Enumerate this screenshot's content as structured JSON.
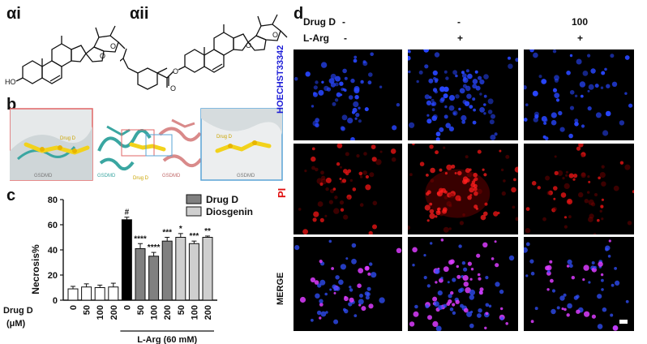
{
  "panels": {
    "ai": "αi",
    "aii": "αii",
    "b": "b",
    "c": "c",
    "d": "d"
  },
  "structures": {
    "ho_label": "HO",
    "o_labels": [
      "O",
      "O"
    ]
  },
  "docking": {
    "left_label_drug": "Drug D",
    "left_label_protein": "GSDMD",
    "center_label_1": "GSDMD",
    "center_label_drug": "Drug D",
    "center_label_2": "GSDMD",
    "right_label_drug": "Drug D",
    "right_label_protein": "GSDMD",
    "colors": {
      "drug": "#f2d21b",
      "teal": "#3aa6a1",
      "pink": "#d98a8a",
      "inset_red": "#e06666",
      "inset_blue": "#5aa4d6"
    }
  },
  "bar_chart": {
    "ylabel": "Necrosis%",
    "yticks": [
      "0",
      "20",
      "40",
      "60",
      "80"
    ],
    "x_row_label_1": "Drug D",
    "x_row_label_2": "(μM)",
    "dose_labels": [
      "0",
      "50",
      "100",
      "200",
      "0",
      "50",
      "100",
      "200",
      "50",
      "100",
      "200"
    ],
    "larg_label": "L-Arg (60 mM)",
    "legend": [
      {
        "name": "Drug D",
        "color": "#808080"
      },
      {
        "name": "Diosgenin",
        "color": "#cfcfcf"
      }
    ],
    "colors": {
      "white": "#ffffff",
      "black": "#000000",
      "drugd": "#808080",
      "diosgenin": "#cfcfcf"
    }
  },
  "chart_data": {
    "type": "bar",
    "ylabel": "Necrosis%",
    "ylim": [
      0,
      80
    ],
    "categories": [
      "0",
      "50",
      "100",
      "200",
      "0",
      "50",
      "100",
      "200",
      "50",
      "100",
      "200"
    ],
    "values": [
      9,
      10.5,
      10,
      10.5,
      64,
      41,
      35,
      47,
      50,
      45,
      50
    ],
    "errors": [
      2,
      2.5,
      2,
      3,
      2,
      4,
      3,
      3,
      3,
      2,
      1
    ],
    "groups": [
      "control",
      "control",
      "control",
      "control",
      "larg",
      "drugd",
      "drugd",
      "drugd",
      "diosgenin",
      "diosgenin",
      "diosgenin"
    ],
    "significance": [
      "",
      "",
      "",
      "",
      "#",
      "****",
      "****",
      "***",
      "*",
      "***",
      "**"
    ],
    "legend": [
      "Drug D",
      "Diosgenin"
    ]
  },
  "microscopy": {
    "header_drug": "Drug D",
    "header_larg": "L-Arg",
    "drug_values": [
      "-",
      "-",
      "100"
    ],
    "larg_values": [
      "-",
      "+",
      "+"
    ],
    "row_labels": [
      "HOECHST33342",
      "PI",
      "MERGE"
    ],
    "row_label_colors": [
      "#1a1ad6",
      "#e01010",
      "#111111"
    ]
  }
}
